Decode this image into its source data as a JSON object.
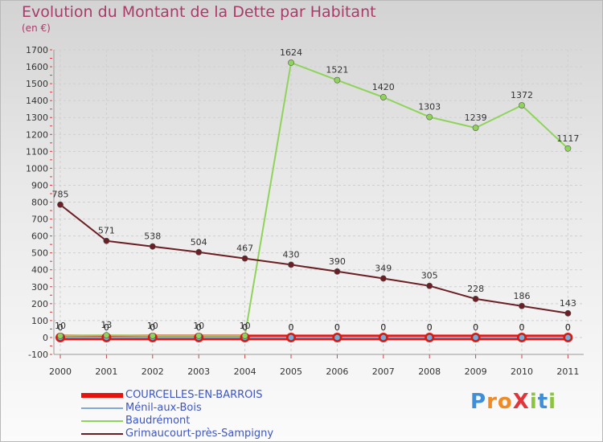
{
  "title": "Evolution du Montant de la Dette par Habitant",
  "subtitle": "(en €)",
  "logo": {
    "text": "ProXiti",
    "colors": [
      "#3e8ed9",
      "#f08a24",
      "#f08a24",
      "#e2343a",
      "#8bc43f",
      "#3e8ed9",
      "#8bc43f"
    ]
  },
  "chart_data": {
    "type": "line",
    "x": [
      "2000",
      "2001",
      "2002",
      "2003",
      "2004",
      "2005",
      "2006",
      "2007",
      "2008",
      "2009",
      "2010",
      "2011"
    ],
    "ylim": [
      -100,
      1700
    ],
    "yticks": [
      -100,
      0,
      100,
      200,
      300,
      400,
      500,
      600,
      700,
      800,
      900,
      1000,
      1100,
      1200,
      1300,
      1400,
      1500,
      1600,
      1700
    ],
    "grid": true,
    "legend": "bottom-left",
    "series": [
      {
        "name": "COURCELLES-EN-BARROIS",
        "color": "#e8130c",
        "values": [
          0,
          0,
          0,
          0,
          0,
          0,
          0,
          0,
          0,
          0,
          0,
          0
        ],
        "labels": [
          "0",
          "0",
          "0",
          "0",
          "0",
          "0",
          "0",
          "0",
          "0",
          "0",
          "0",
          "0"
        ]
      },
      {
        "name": "Ménil-aux-Bois",
        "color": "#7fa9d6",
        "values": [
          0,
          0,
          0,
          0,
          0,
          0,
          0,
          0,
          0,
          0,
          0,
          0
        ],
        "labels": [
          "0",
          "0",
          "0",
          "0",
          "0",
          "0",
          "0",
          "0",
          "0",
          "0",
          "0",
          "0"
        ]
      },
      {
        "name": "Baudrémont",
        "color": "#8fd45a",
        "values": [
          10,
          13,
          10,
          10,
          10,
          1624,
          1521,
          1420,
          1303,
          1239,
          1372,
          1117
        ],
        "labels": [
          "10",
          "13",
          "10",
          "10",
          "10",
          "1624",
          "1521",
          "1420",
          "1303",
          "1239",
          "1372",
          "1117"
        ]
      },
      {
        "name": "Grimaucourt-près-Sampigny",
        "color": "#6b1e23",
        "values": [
          785,
          571,
          538,
          504,
          467,
          430,
          390,
          349,
          305,
          228,
          186,
          143
        ],
        "labels": [
          "785",
          "571",
          "538",
          "504",
          "467",
          "430",
          "390",
          "349",
          "305",
          "228",
          "186",
          "143"
        ]
      }
    ]
  }
}
